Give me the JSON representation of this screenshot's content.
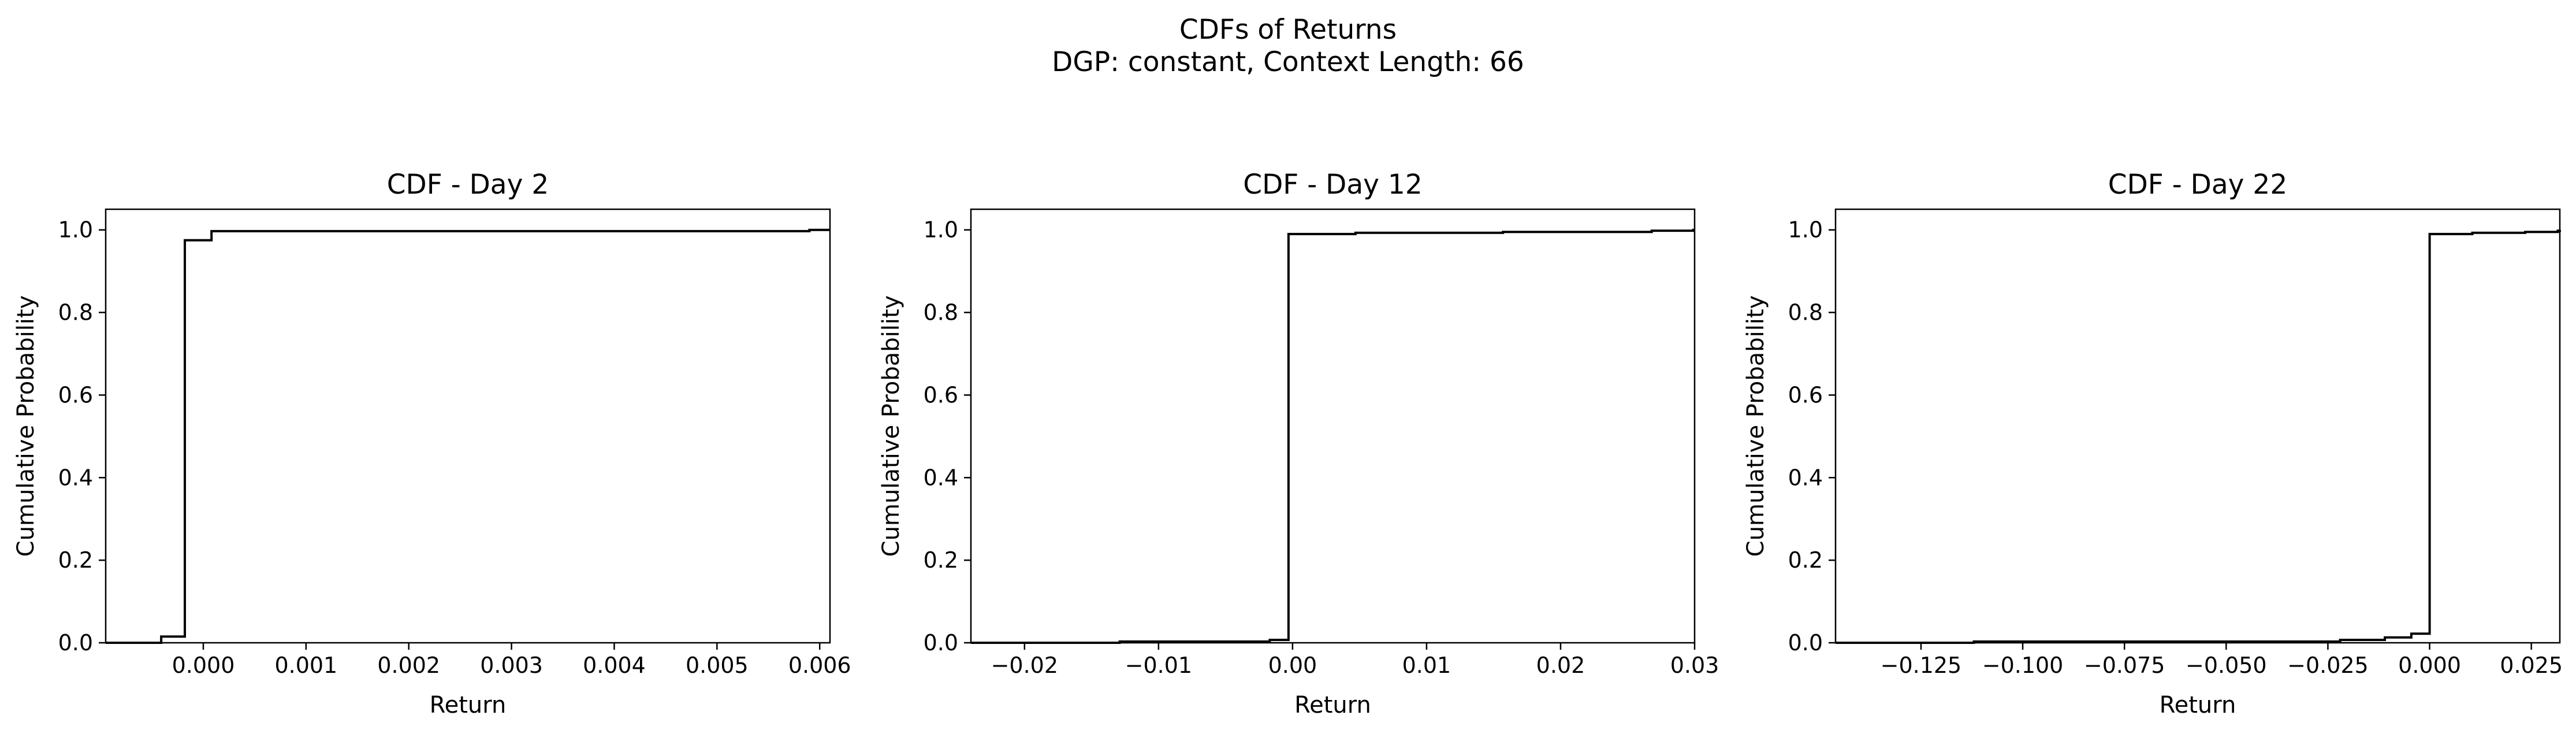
{
  "figure": {
    "title_line1": "CDFs of Returns",
    "title_line2": "DGP: constant, Context Length: 66"
  },
  "chart_data": [
    {
      "type": "line",
      "step": "post",
      "title": "CDF - Day 2",
      "xlabel": "Return",
      "ylabel": "Cumulative Probability",
      "xlim": [
        -0.00095,
        0.0061
      ],
      "ylim": [
        0,
        1.05
      ],
      "xticks": [
        0.0,
        0.001,
        0.002,
        0.003,
        0.004,
        0.005,
        0.006
      ],
      "xtick_labels": [
        "0.000",
        "0.001",
        "0.002",
        "0.003",
        "0.004",
        "0.005",
        "0.006"
      ],
      "yticks": [
        0.0,
        0.2,
        0.4,
        0.6,
        0.8,
        1.0
      ],
      "ytick_labels": [
        "0.0",
        "0.2",
        "0.4",
        "0.6",
        "0.8",
        "1.0"
      ],
      "grid": false,
      "color": "#000000",
      "x": [
        -0.00095,
        -0.00041,
        -0.00018,
        8e-05,
        0.0059,
        0.0061
      ],
      "y": [
        0.0,
        0.015,
        0.975,
        0.997,
        1.0,
        1.0
      ]
    },
    {
      "type": "line",
      "step": "post",
      "title": "CDF - Day 12",
      "xlabel": "Return",
      "ylabel": "Cumulative Probability",
      "xlim": [
        -0.024,
        0.03
      ],
      "ylim": [
        0,
        1.05
      ],
      "xticks": [
        -0.02,
        -0.01,
        0.0,
        0.01,
        0.02,
        0.03
      ],
      "xtick_labels": [
        "−0.02",
        "−0.01",
        "0.00",
        "0.01",
        "0.02",
        "0.03"
      ],
      "yticks": [
        0.0,
        0.2,
        0.4,
        0.6,
        0.8,
        1.0
      ],
      "ytick_labels": [
        "0.0",
        "0.2",
        "0.4",
        "0.6",
        "0.8",
        "1.0"
      ],
      "grid": false,
      "color": "#000000",
      "x": [
        -0.024,
        -0.0129,
        -0.0017,
        -0.0003,
        0.0047,
        0.0157,
        0.0268,
        0.0299,
        0.03
      ],
      "y": [
        0.0,
        0.003,
        0.007,
        0.99,
        0.993,
        0.995,
        0.998,
        1.0,
        1.0
      ]
    },
    {
      "type": "line",
      "step": "post",
      "title": "CDF - Day 22",
      "xlabel": "Return",
      "ylabel": "Cumulative Probability",
      "xlim": [
        -0.146,
        0.032
      ],
      "ylim": [
        0,
        1.05
      ],
      "xticks": [
        -0.125,
        -0.1,
        -0.075,
        -0.05,
        -0.025,
        0.0,
        0.025
      ],
      "xtick_labels": [
        "−0.125",
        "−0.100",
        "−0.075",
        "−0.050",
        "−0.025",
        "0.000",
        "0.025"
      ],
      "yticks": [
        0.0,
        0.2,
        0.4,
        0.6,
        0.8,
        1.0
      ],
      "ytick_labels": [
        "0.0",
        "0.2",
        "0.4",
        "0.6",
        "0.8",
        "1.0"
      ],
      "grid": false,
      "color": "#000000",
      "x": [
        -0.146,
        -0.112,
        -0.022,
        -0.011,
        -0.0045,
        0.0,
        0.0105,
        0.0235,
        0.0315,
        0.032
      ],
      "y": [
        0.0,
        0.003,
        0.007,
        0.013,
        0.022,
        0.99,
        0.993,
        0.995,
        0.998,
        1.0
      ]
    }
  ]
}
